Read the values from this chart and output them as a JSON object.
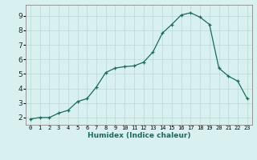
{
  "x": [
    0,
    1,
    2,
    3,
    4,
    5,
    6,
    7,
    8,
    9,
    10,
    11,
    12,
    13,
    14,
    15,
    16,
    17,
    18,
    19,
    20,
    21,
    22,
    23
  ],
  "y": [
    1.9,
    2.0,
    2.0,
    2.3,
    2.5,
    3.1,
    3.3,
    4.1,
    5.1,
    5.4,
    5.5,
    5.55,
    5.8,
    6.5,
    7.8,
    8.4,
    9.05,
    9.2,
    8.9,
    8.4,
    5.4,
    4.85,
    4.5,
    3.3
  ],
  "xlabel": "Humidex (Indice chaleur)",
  "line_color": "#1a6b5a",
  "marker_color": "#1a6b5a",
  "bg_color": "#d9f0f0",
  "grid_color": "#b8d8d8",
  "xlim": [
    -0.5,
    23.5
  ],
  "ylim": [
    1.5,
    9.75
  ],
  "yticks": [
    2,
    3,
    4,
    5,
    6,
    7,
    8,
    9
  ],
  "xticks": [
    0,
    1,
    2,
    3,
    4,
    5,
    6,
    7,
    8,
    9,
    10,
    11,
    12,
    13,
    14,
    15,
    16,
    17,
    18,
    19,
    20,
    21,
    22,
    23
  ]
}
